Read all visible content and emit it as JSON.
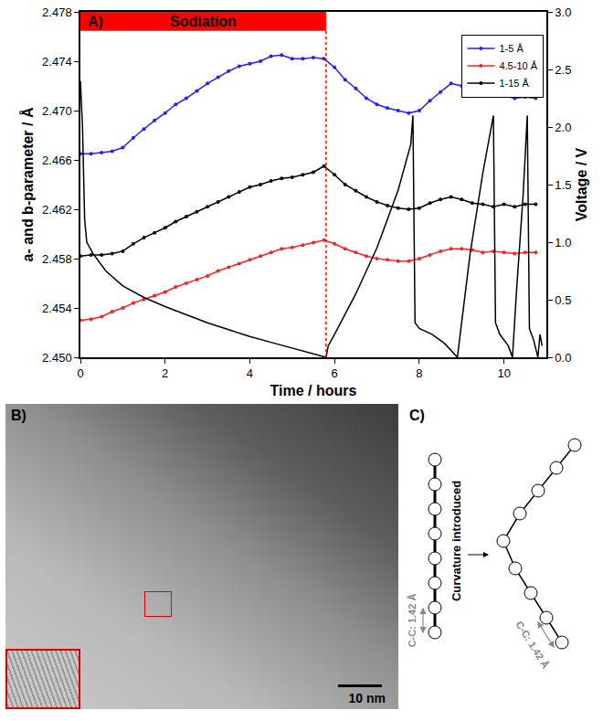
{
  "chart_data": {
    "type": "line",
    "panel_label": "A)",
    "x_label": "Time / hours",
    "y_label": "a- and b-parameter / Å",
    "y2_label": "Voltage / V",
    "xlim": [
      0,
      11
    ],
    "xticks": [
      0,
      2,
      4,
      6,
      8,
      10
    ],
    "ylim": [
      2.45,
      2.478
    ],
    "yticks": [
      {
        "value": 2.45,
        "label": "2.450"
      },
      2.454,
      2.458,
      2.462,
      2.466,
      {
        "value": 2.47,
        "label": "2.470"
      },
      2.474,
      2.478
    ],
    "y2lim": [
      0,
      3
    ],
    "y2ticks": [
      {
        "value": 0,
        "label": "0.0"
      },
      0.5,
      {
        "value": 1,
        "label": "1.0"
      },
      1.5,
      {
        "value": 2,
        "label": "2.0"
      },
      2.5,
      {
        "value": 3,
        "label": "3.0"
      }
    ],
    "grid": false,
    "legend": "upper right",
    "regions": [
      {
        "label": "Sodiation",
        "x": [
          0,
          5.8
        ],
        "color": "#ff0000"
      }
    ],
    "series": [
      {
        "name": "1-5 Å",
        "color": "#1f1fff",
        "marker": "circle",
        "line_style": "solid",
        "x": [
          0,
          0.25,
          0.5,
          0.75,
          1,
          1.25,
          1.5,
          1.75,
          2,
          2.25,
          2.5,
          2.75,
          3,
          3.25,
          3.5,
          3.75,
          4,
          4.25,
          4.5,
          4.75,
          5,
          5.25,
          5.5,
          5.75,
          6,
          6.25,
          6.5,
          6.75,
          7,
          7.25,
          7.5,
          7.75,
          8,
          8.25,
          8.5,
          8.75,
          9,
          9.25,
          9.5,
          9.75,
          10,
          10.25,
          10.5,
          10.75
        ],
        "values": [
          2.4665,
          2.4665,
          2.4666,
          2.4667,
          2.467,
          2.4678,
          2.4685,
          2.4692,
          2.4698,
          2.4705,
          2.471,
          2.4716,
          2.4722,
          2.4727,
          2.4732,
          2.4736,
          2.4738,
          2.474,
          2.4744,
          2.4745,
          2.4742,
          2.4742,
          2.4743,
          2.4742,
          2.4735,
          2.4725,
          2.4718,
          2.471,
          2.4705,
          2.4702,
          2.47,
          2.4698,
          2.47,
          2.4708,
          2.4715,
          2.4722,
          2.472,
          2.4715,
          2.4716,
          2.4712,
          2.4712,
          2.471,
          2.4711,
          2.471
        ]
      },
      {
        "name": "4.5-10 Å",
        "color": "#ff2020",
        "marker": "circle",
        "line_style": "solid",
        "x": [
          0,
          0.25,
          0.5,
          0.75,
          1,
          1.25,
          1.5,
          1.75,
          2,
          2.25,
          2.5,
          2.75,
          3,
          3.25,
          3.5,
          3.75,
          4,
          4.25,
          4.5,
          4.75,
          5,
          5.25,
          5.5,
          5.75,
          6,
          6.25,
          6.5,
          6.75,
          7,
          7.25,
          7.5,
          7.75,
          8,
          8.25,
          8.5,
          8.75,
          9,
          9.25,
          9.5,
          9.75,
          10,
          10.25,
          10.5,
          10.75
        ],
        "values": [
          2.453,
          2.4531,
          2.4533,
          2.4537,
          2.454,
          2.4544,
          2.4547,
          2.455,
          2.4553,
          2.4557,
          2.456,
          2.4563,
          2.4566,
          2.457,
          2.4573,
          2.4576,
          2.4579,
          2.4582,
          2.4585,
          2.4588,
          2.4589,
          2.4591,
          2.4593,
          2.4595,
          2.4592,
          2.4588,
          2.4585,
          2.4582,
          2.458,
          2.4579,
          2.4578,
          2.4578,
          2.458,
          2.4583,
          2.4586,
          2.4588,
          2.4588,
          2.4587,
          2.4585,
          2.4586,
          2.4585,
          2.4584,
          2.4585,
          2.4585
        ]
      },
      {
        "name": "1-15 Å",
        "color": "#000000",
        "marker": "circle",
        "line_style": "solid",
        "x": [
          0,
          0.25,
          0.5,
          0.75,
          1,
          1.25,
          1.5,
          1.75,
          2,
          2.25,
          2.5,
          2.75,
          3,
          3.25,
          3.5,
          3.75,
          4,
          4.25,
          4.5,
          4.75,
          5,
          5.25,
          5.5,
          5.75,
          6,
          6.25,
          6.5,
          6.75,
          7,
          7.25,
          7.5,
          7.75,
          8,
          8.25,
          8.5,
          8.75,
          9,
          9.25,
          9.5,
          9.75,
          10,
          10.25,
          10.5,
          10.75
        ],
        "values": [
          2.4582,
          2.4583,
          2.4583,
          2.4584,
          2.4586,
          2.4592,
          2.4597,
          2.4601,
          2.4605,
          2.461,
          2.4614,
          2.4618,
          2.4622,
          2.4626,
          2.463,
          2.4634,
          2.4638,
          2.464,
          2.4643,
          2.4645,
          2.4646,
          2.4648,
          2.465,
          2.4655,
          2.4648,
          2.464,
          2.4635,
          2.463,
          2.4626,
          2.4623,
          2.4621,
          2.462,
          2.4621,
          2.4625,
          2.4628,
          2.463,
          2.4628,
          2.4625,
          2.4624,
          2.4622,
          2.4624,
          2.4622,
          2.4624,
          2.4624
        ]
      },
      {
        "color": "#000000",
        "line_style": "solid",
        "axis": "y2",
        "x": [
          0,
          0.05,
          0.1,
          0.15,
          0.3,
          0.6,
          1,
          1.5,
          2,
          2.5,
          3,
          3.5,
          4,
          4.5,
          5,
          5.5,
          5.8,
          5.85,
          6,
          6.5,
          7,
          7.5,
          7.8,
          7.85,
          7.9,
          8,
          8.3,
          8.6,
          8.9,
          9.0,
          9.2,
          9.5,
          9.7,
          9.75,
          9.8,
          9.9,
          10.1,
          10.2,
          10.3,
          10.45,
          10.55,
          10.6,
          10.7,
          10.8,
          10.85,
          10.9
        ],
        "values": [
          2.4,
          2.0,
          1.2,
          1.0,
          0.9,
          0.75,
          0.62,
          0.52,
          0.44,
          0.37,
          0.3,
          0.24,
          0.18,
          0.13,
          0.08,
          0.03,
          0.0,
          0.1,
          0.2,
          0.55,
          0.95,
          1.45,
          1.85,
          2.1,
          0.3,
          0.25,
          0.2,
          0.12,
          0.0,
          0.3,
          0.9,
          1.6,
          2.0,
          2.1,
          0.3,
          0.2,
          0.1,
          0.0,
          0.6,
          1.4,
          2.1,
          0.25,
          0.15,
          0.0,
          0.2,
          0.1
        ]
      }
    ]
  },
  "panels": {
    "B": {
      "label": "B)",
      "scale_bar": "10 nm"
    },
    "C": {
      "label": "C)",
      "text": "Curvature introduced",
      "bond_labels": [
        "C-C: 1.42 Å",
        "C-C: 1.42 Å"
      ]
    }
  }
}
